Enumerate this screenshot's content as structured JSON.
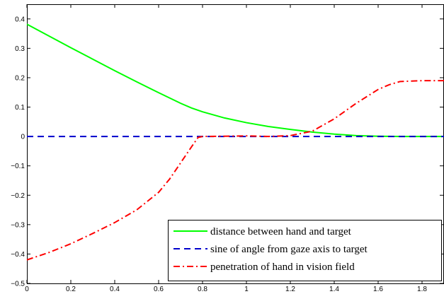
{
  "chart_data": {
    "type": "line",
    "title": "",
    "xlabel": "",
    "ylabel": "",
    "xlim": [
      0,
      1.9
    ],
    "ylim": [
      -0.5,
      0.45
    ],
    "xticks": [
      0,
      0.2,
      0.4,
      0.6,
      0.8,
      1,
      1.2,
      1.4,
      1.6,
      1.8
    ],
    "xtick_labels": [
      "0",
      "0.2",
      "0.4",
      "0.6",
      "0.8",
      "1",
      "1.2",
      "1.4",
      "1.6",
      "1.8"
    ],
    "yticks": [
      -0.5,
      -0.4,
      -0.3,
      -0.2,
      -0.1,
      0,
      0.1,
      0.2,
      0.3,
      0.4
    ],
    "ytick_labels": [
      "−0.5",
      "−0.4",
      "−0.3",
      "−0.2",
      "−0.1",
      "0",
      "0.1",
      "0.2",
      "0.3",
      "0.4"
    ],
    "grid": false,
    "legend_position": "bottom-right",
    "series": [
      {
        "name": "distance between hand and target",
        "color": "#00ff00",
        "style": "solid",
        "x": [
          0,
          0.1,
          0.2,
          0.3,
          0.4,
          0.5,
          0.6,
          0.7,
          0.75,
          0.8,
          0.9,
          1.0,
          1.1,
          1.2,
          1.3,
          1.4,
          1.5,
          1.6,
          1.7,
          1.8,
          1.9
        ],
        "y": [
          0.382,
          0.342,
          0.302,
          0.263,
          0.224,
          0.186,
          0.149,
          0.113,
          0.097,
          0.084,
          0.063,
          0.047,
          0.034,
          0.024,
          0.015,
          0.008,
          0.003,
          0.001,
          0.0,
          0.0,
          0.0
        ]
      },
      {
        "name": "sine of angle from gaze axis to target",
        "color": "#0000cc",
        "style": "dashed",
        "x": [
          0,
          1.9
        ],
        "y": [
          0,
          0
        ]
      },
      {
        "name": "penetration of hand in vision field",
        "color": "#ff0000",
        "style": "dashdot",
        "x": [
          0,
          0.1,
          0.2,
          0.3,
          0.4,
          0.5,
          0.6,
          0.65,
          0.7,
          0.75,
          0.78,
          0.8,
          0.9,
          1.0,
          1.1,
          1.2,
          1.3,
          1.4,
          1.5,
          1.6,
          1.65,
          1.7,
          1.8,
          1.9
        ],
        "y": [
          -0.42,
          -0.395,
          -0.365,
          -0.33,
          -0.293,
          -0.25,
          -0.19,
          -0.145,
          -0.09,
          -0.035,
          -0.003,
          0.0,
          0.001,
          0.002,
          0.0,
          0.003,
          0.018,
          0.06,
          0.113,
          0.16,
          0.176,
          0.187,
          0.19,
          0.19
        ]
      }
    ]
  }
}
